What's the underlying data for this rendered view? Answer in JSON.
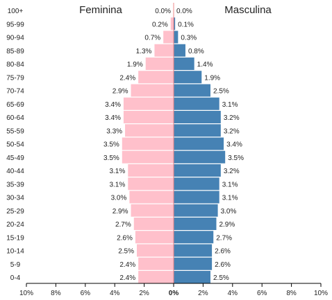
{
  "chart_data": {
    "type": "bar",
    "orientation": "horizontal",
    "layout": "population-pyramid",
    "categories": [
      "0-4",
      "5-9",
      "10-14",
      "15-19",
      "20-24",
      "25-29",
      "30-34",
      "35-39",
      "40-44",
      "45-49",
      "50-54",
      "55-59",
      "60-64",
      "65-69",
      "70-74",
      "75-79",
      "80-84",
      "85-89",
      "90-94",
      "95-99",
      "100+"
    ],
    "series": [
      {
        "name": "Feminina",
        "side": "left",
        "color": "#ffc0cb",
        "values": [
          2.4,
          2.4,
          2.5,
          2.6,
          2.7,
          2.9,
          3.0,
          3.1,
          3.1,
          3.5,
          3.5,
          3.3,
          3.4,
          3.4,
          2.9,
          2.4,
          1.9,
          1.3,
          0.7,
          0.2,
          0.0
        ],
        "labels": [
          "2.4%",
          "2.4%",
          "2.5%",
          "2.6%",
          "2.7%",
          "2.9%",
          "3.0%",
          "3.1%",
          "3.1%",
          "3.5%",
          "3.5%",
          "3.3%",
          "3.4%",
          "3.4%",
          "2.9%",
          "2.4%",
          "1.9%",
          "1.3%",
          "0.7%",
          "0.2%",
          "0.0%"
        ]
      },
      {
        "name": "Masculina",
        "side": "right",
        "color": "#4682b4",
        "values": [
          2.5,
          2.6,
          2.6,
          2.7,
          2.9,
          3.0,
          3.1,
          3.1,
          3.2,
          3.5,
          3.4,
          3.2,
          3.2,
          3.1,
          2.5,
          1.9,
          1.4,
          0.8,
          0.3,
          0.1,
          0.0
        ],
        "labels": [
          "2.5%",
          "2.6%",
          "2.6%",
          "2.7%",
          "2.9%",
          "3.0%",
          "3.1%",
          "3.1%",
          "3.2%",
          "3.5%",
          "3.4%",
          "3.2%",
          "3.2%",
          "3.1%",
          "2.5%",
          "1.9%",
          "1.4%",
          "0.8%",
          "0.3%",
          "0.1%",
          "0.0%"
        ]
      }
    ],
    "xlim": [
      -10,
      10
    ],
    "x_ticks": [
      -10,
      -8,
      -6,
      -4,
      -2,
      0,
      2,
      4,
      6,
      8,
      10
    ],
    "x_tick_labels": [
      "10%",
      "8%",
      "6%",
      "4%",
      "2%",
      "0%",
      "2%",
      "4%",
      "6%",
      "8%",
      "10%"
    ],
    "grid": false,
    "colors": {
      "female": "#ffc0cb",
      "male": "#4682b4",
      "axis": "#000000"
    }
  }
}
